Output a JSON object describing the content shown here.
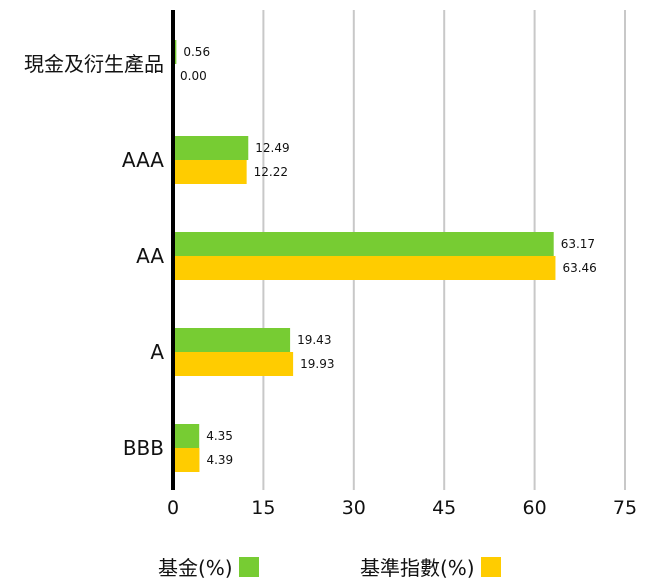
{
  "chart_data": {
    "type": "bar",
    "orientation": "horizontal",
    "categories": [
      "現金及衍生產品",
      "AAA",
      "AA",
      "A",
      "BBB"
    ],
    "series": [
      {
        "name": "基金(%)",
        "color": "#77CC33",
        "values": [
          0.56,
          12.49,
          63.17,
          19.43,
          4.35
        ]
      },
      {
        "name": "基準指數(%)",
        "color": "#FFCC00",
        "values": [
          0.0,
          12.22,
          63.46,
          19.93,
          4.39
        ]
      }
    ],
    "value_labels": [
      [
        "0.56",
        "12.49",
        "63.17",
        "19.43",
        "4.35"
      ],
      [
        "0.00",
        "12.22",
        "63.46",
        "19.93",
        "4.39"
      ]
    ],
    "xlim": [
      0,
      75
    ],
    "xticks": [
      "0",
      "15",
      "30",
      "45",
      "60",
      "75"
    ],
    "grid": "vertical",
    "legend_position": "bottom",
    "xlabel": "",
    "ylabel": ""
  },
  "legend": {
    "fund_label": "基金(%)",
    "benchmark_label": "基準指數(%)"
  }
}
